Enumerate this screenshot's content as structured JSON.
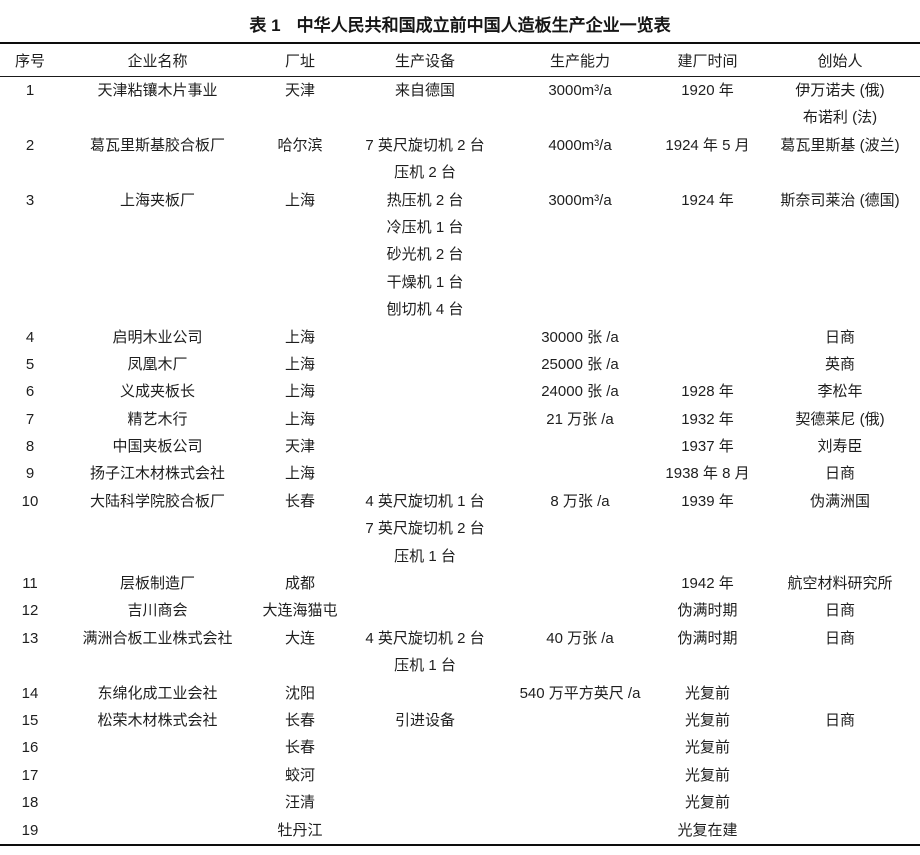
{
  "page": {
    "background_color": "#ffffff",
    "text_color": "#1e1e1e",
    "rule_color": "#0d0d0d"
  },
  "title": {
    "label": "表 1",
    "text": "中华人民共和国成立前中国人造板生产企业一览表"
  },
  "table": {
    "columns": [
      {
        "key": "no",
        "label": "序号"
      },
      {
        "key": "name",
        "label": "企业名称"
      },
      {
        "key": "site",
        "label": "厂址"
      },
      {
        "key": "equipment",
        "label": "生产设备"
      },
      {
        "key": "capacity",
        "label": "生产能力"
      },
      {
        "key": "founded",
        "label": "建厂时间"
      },
      {
        "key": "founder",
        "label": "创始人"
      }
    ],
    "rows": [
      {
        "no": [
          "1"
        ],
        "name": [
          "天津粘镶木片事业"
        ],
        "site": [
          "天津"
        ],
        "equipment": [
          "来自德国"
        ],
        "capacity": [
          "3000m³/a"
        ],
        "founded": [
          "1920 年"
        ],
        "founder": [
          "伊万诺夫 (俄)",
          "布诺利 (法)"
        ]
      },
      {
        "no": [
          "2"
        ],
        "name": [
          "葛瓦里斯基胶合板厂"
        ],
        "site": [
          "哈尔滨"
        ],
        "equipment": [
          "7 英尺旋切机 2 台",
          "压机 2 台"
        ],
        "capacity": [
          "4000m³/a"
        ],
        "founded": [
          "1924 年 5 月"
        ],
        "founder": [
          "葛瓦里斯基 (波兰)"
        ]
      },
      {
        "no": [
          "3"
        ],
        "name": [
          "上海夹板厂"
        ],
        "site": [
          "上海"
        ],
        "equipment": [
          "热压机 2 台",
          "冷压机 1 台",
          "砂光机 2 台",
          "干燥机 1 台",
          "刨切机 4 台"
        ],
        "capacity": [
          "3000m³/a"
        ],
        "founded": [
          "1924 年"
        ],
        "founder": [
          "斯奈司莱治 (德国)"
        ]
      },
      {
        "no": [
          "4"
        ],
        "name": [
          "启明木业公司"
        ],
        "site": [
          "上海"
        ],
        "equipment": [],
        "capacity": [
          "30000 张 /a"
        ],
        "founded": [],
        "founder": [
          "日商"
        ]
      },
      {
        "no": [
          "5"
        ],
        "name": [
          "凤凰木厂"
        ],
        "site": [
          "上海"
        ],
        "equipment": [],
        "capacity": [
          "25000 张 /a"
        ],
        "founded": [],
        "founder": [
          "英商"
        ]
      },
      {
        "no": [
          "6"
        ],
        "name": [
          "义成夹板长"
        ],
        "site": [
          "上海"
        ],
        "equipment": [],
        "capacity": [
          "24000 张 /a"
        ],
        "founded": [
          "1928 年"
        ],
        "founder": [
          "李松年"
        ]
      },
      {
        "no": [
          "7"
        ],
        "name": [
          "精艺木行"
        ],
        "site": [
          "上海"
        ],
        "equipment": [],
        "capacity": [
          "21 万张 /a"
        ],
        "founded": [
          "1932 年"
        ],
        "founder": [
          "契德莱尼 (俄)"
        ]
      },
      {
        "no": [
          "8"
        ],
        "name": [
          "中国夹板公司"
        ],
        "site": [
          "天津"
        ],
        "equipment": [],
        "capacity": [],
        "founded": [
          "1937 年"
        ],
        "founder": [
          "刘寿臣"
        ]
      },
      {
        "no": [
          "9"
        ],
        "name": [
          "扬子江木材株式会社"
        ],
        "site": [
          "上海"
        ],
        "equipment": [],
        "capacity": [],
        "founded": [
          "1938 年 8 月"
        ],
        "founder": [
          "日商"
        ]
      },
      {
        "no": [
          "10"
        ],
        "name": [
          "大陆科学院胶合板厂"
        ],
        "site": [
          "长春"
        ],
        "equipment": [
          "4 英尺旋切机 1 台",
          "7 英尺旋切机 2 台",
          "压机 1 台"
        ],
        "capacity": [
          "8 万张 /a"
        ],
        "founded": [
          "1939 年"
        ],
        "founder": [
          "伪满洲国"
        ]
      },
      {
        "no": [
          "11"
        ],
        "name": [
          "层板制造厂"
        ],
        "site": [
          "成都"
        ],
        "equipment": [],
        "capacity": [],
        "founded": [
          "1942 年"
        ],
        "founder": [
          "航空材料研究所"
        ]
      },
      {
        "no": [
          "12"
        ],
        "name": [
          "吉川商会"
        ],
        "site": [
          "大连海猫屯"
        ],
        "equipment": [],
        "capacity": [],
        "founded": [
          "伪满时期"
        ],
        "founder": [
          "日商"
        ]
      },
      {
        "no": [
          "13"
        ],
        "name": [
          "满洲合板工业株式会社"
        ],
        "site": [
          "大连"
        ],
        "equipment": [
          "4 英尺旋切机 2 台",
          "压机 1 台"
        ],
        "capacity": [
          "40 万张 /a"
        ],
        "founded": [
          "伪满时期"
        ],
        "founder": [
          "日商"
        ]
      },
      {
        "no": [
          "14"
        ],
        "name": [
          "东绵化成工业会社"
        ],
        "site": [
          "沈阳"
        ],
        "equipment": [],
        "capacity": [
          "540 万平方英尺 /a"
        ],
        "founded": [
          "光复前"
        ],
        "founder": []
      },
      {
        "no": [
          "15"
        ],
        "name": [
          "松荣木材株式会社"
        ],
        "site": [
          "长春"
        ],
        "equipment": [
          "引进设备"
        ],
        "capacity": [],
        "founded": [
          "光复前"
        ],
        "founder": [
          "日商"
        ]
      },
      {
        "no": [
          "16"
        ],
        "name": [],
        "site": [
          "长春"
        ],
        "equipment": [],
        "capacity": [],
        "founded": [
          "光复前"
        ],
        "founder": []
      },
      {
        "no": [
          "17"
        ],
        "name": [],
        "site": [
          "蛟河"
        ],
        "equipment": [],
        "capacity": [],
        "founded": [
          "光复前"
        ],
        "founder": []
      },
      {
        "no": [
          "18"
        ],
        "name": [],
        "site": [
          "汪清"
        ],
        "equipment": [],
        "capacity": [],
        "founded": [
          "光复前"
        ],
        "founder": []
      },
      {
        "no": [
          "19"
        ],
        "name": [],
        "site": [
          "牡丹江"
        ],
        "equipment": [],
        "capacity": [],
        "founded": [
          "光复在建"
        ],
        "founder": []
      }
    ]
  }
}
